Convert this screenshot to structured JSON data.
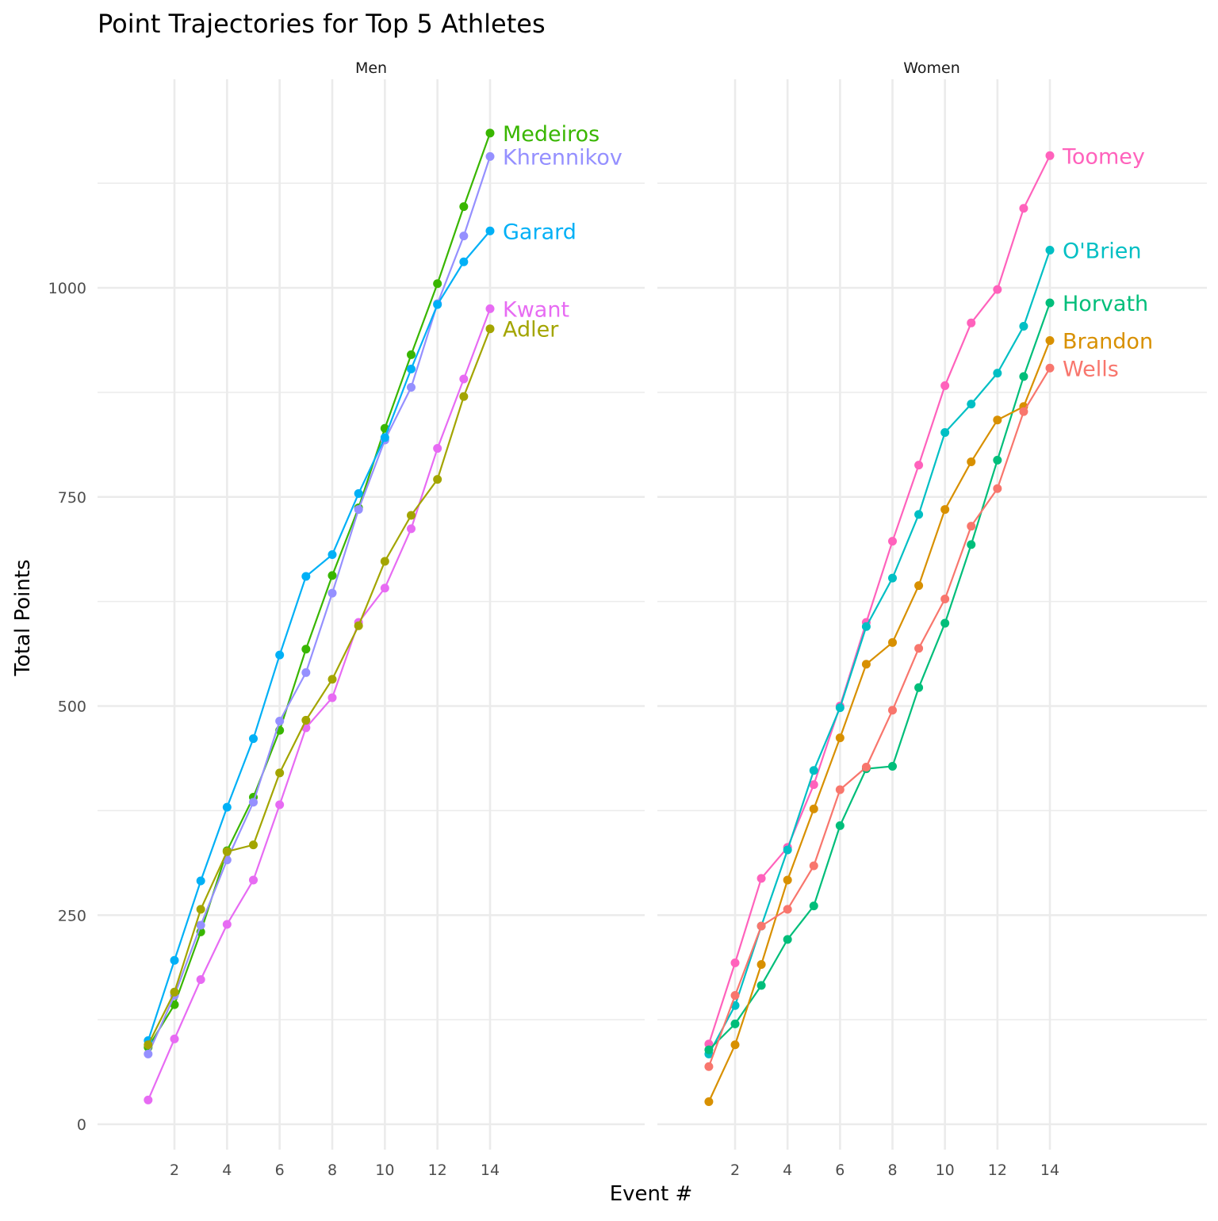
{
  "chart_data": {
    "type": "line",
    "title": "Point Trajectories for Top 5 Athletes",
    "xlabel": "Event #",
    "ylabel": "Total Points",
    "xlim": [
      0,
      20
    ],
    "ylim": [
      -20,
      1185
    ],
    "x_ticks": [
      2,
      4,
      6,
      8,
      10,
      12,
      14
    ],
    "x_tick_labels": [
      "2",
      "4",
      "6",
      "8",
      "10",
      "12",
      "14"
    ],
    "y_ticks": [
      0,
      250,
      500,
      750,
      1000
    ],
    "y_tick_labels": [
      "0",
      "250",
      "500",
      "750",
      "1000"
    ],
    "grid": true,
    "legend": "none (direct labels at line ends)",
    "x": [
      1,
      2,
      3,
      4,
      5,
      6,
      7,
      8,
      9,
      10,
      11,
      12,
      13,
      14
    ],
    "panels": [
      {
        "name": "Men",
        "series": [
          {
            "name": "Medeiros",
            "color": "#39B600",
            "values": [
              92,
              143,
              230,
              327,
              391,
              471,
              568,
              656,
              737,
              832,
              920,
              1005,
              1097,
              1185
            ]
          },
          {
            "name": "Khrennikov",
            "color": "#9590FF",
            "values": [
              84,
              154,
              238,
              316,
              385,
              482,
              540,
              635,
              735,
              818,
              881,
              981,
              1062,
              1157
            ]
          },
          {
            "name": "Garard",
            "color": "#00B0F6",
            "values": [
              100,
              196,
              291,
              379,
              461,
              561,
              655,
              681,
              754,
              821,
              903,
              980,
              1031,
              1068
            ]
          },
          {
            "name": "Kwant",
            "color": "#E76BF3",
            "values": [
              29,
              102,
              173,
              239,
              292,
              382,
              474,
              510,
              600,
              641,
              712,
              808,
              891,
              975
            ]
          },
          {
            "name": "Adler",
            "color": "#A3A500",
            "values": [
              95,
              158,
              257,
              326,
              334,
              420,
              483,
              532,
              596,
              673,
              728,
              771,
              870,
              951
            ]
          }
        ]
      },
      {
        "name": "Women",
        "series": [
          {
            "name": "Toomey",
            "color": "#FF62BC",
            "values": [
              96,
              193,
              294,
              331,
              406,
              500,
              600,
              697,
              788,
              883,
              958,
              998,
              1095,
              1158
            ]
          },
          {
            "name": "O'Brien",
            "color": "#00BFC4",
            "values": [
              84,
              142,
              237,
              328,
              423,
              498,
              595,
              653,
              729,
              827,
              861,
              898,
              954,
              1045
            ]
          },
          {
            "name": "Horvath",
            "color": "#00BE7A",
            "values": [
              89,
              120,
              166,
              221,
              261,
              357,
              425,
              428,
              522,
              599,
              693,
              794,
              894,
              982
            ]
          },
          {
            "name": "Brandon",
            "color": "#D89000",
            "values": [
              27,
              95,
              191,
              292,
              377,
              462,
              550,
              576,
              644,
              735,
              792,
              842,
              858,
              937
            ]
          },
          {
            "name": "Wells",
            "color": "#F8766D",
            "values": [
              69,
              154,
              237,
              257,
              309,
              400,
              427,
              495,
              569,
              628,
              715,
              760,
              852,
              904
            ]
          }
        ]
      }
    ]
  }
}
